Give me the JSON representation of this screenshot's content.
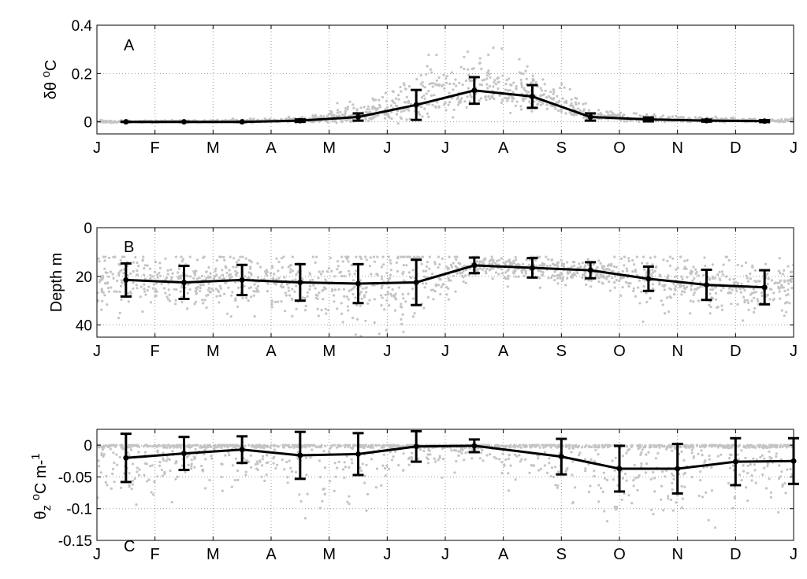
{
  "months": [
    "J",
    "F",
    "M",
    "A",
    "M",
    "J",
    "J",
    "A",
    "S",
    "O",
    "N",
    "D",
    "J"
  ],
  "scatter_color": "#c4c4c4",
  "line_color": "#000000",
  "chart_data": [
    {
      "type": "line",
      "panel_label": "A",
      "ylabel_main": "δθ",
      "ylabel_unit": "oC",
      "ylim": [
        -0.05,
        0.4
      ],
      "yticks": [
        0,
        0.2,
        0.4
      ],
      "ytick_labels": [
        "0",
        "0.2",
        "0.4"
      ],
      "xlim": [
        0,
        12
      ],
      "grid": true,
      "series": [
        {
          "x": [
            0.5,
            1.5,
            2.5,
            3.5,
            4.5,
            5.5,
            6.5,
            7.5,
            8.5,
            9.5,
            10.5,
            11.5
          ],
          "values": [
            0,
            0,
            0,
            0.005,
            0.02,
            0.07,
            0.13,
            0.105,
            0.02,
            0.01,
            0.005,
            0.003
          ],
          "errors": [
            0,
            0,
            0,
            0.005,
            0.015,
            0.062,
            0.055,
            0.047,
            0.015,
            0.008,
            0.004,
            0.004
          ]
        }
      ],
      "scatter_spread": [
        0.005,
        0.005,
        0.008,
        0.012,
        0.04,
        0.12,
        0.12,
        0.09,
        0.03,
        0.015,
        0.01,
        0.008
      ]
    },
    {
      "type": "line",
      "panel_label": "B",
      "ylabel_main": "Depth m",
      "ylabel_unit": "",
      "ylim": [
        45,
        0
      ],
      "yticks": [
        0,
        20,
        40
      ],
      "ytick_labels": [
        "0",
        "20",
        "40"
      ],
      "xlim": [
        0,
        12
      ],
      "grid": true,
      "series": [
        {
          "x": [
            0.5,
            1.5,
            2.5,
            3.5,
            4.5,
            5.5,
            6.5,
            7.5,
            8.5,
            9.5,
            10.5,
            11.5
          ],
          "values": [
            21.5,
            22.5,
            21.5,
            22.5,
            23,
            22.5,
            15.5,
            16.5,
            17.5,
            21,
            23.5,
            24.5
          ],
          "errors": [
            6.8,
            6.8,
            6.2,
            7.5,
            8,
            9.3,
            3.2,
            4,
            3.3,
            5,
            6.2,
            7
          ]
        }
      ],
      "scatter_spread": [
        8,
        8,
        8,
        10,
        14,
        14,
        3,
        4,
        4,
        7,
        8,
        8
      ]
    },
    {
      "type": "line",
      "panel_label": "C",
      "ylabel_main": "θz",
      "ylabel_unit": "oC m-1",
      "ylim": [
        -0.15,
        0.025
      ],
      "yticks": [
        0,
        -0.05,
        -0.1,
        -0.15
      ],
      "ytick_labels": [
        "0",
        "-0.05",
        "-0.1",
        "-0.15"
      ],
      "xlim": [
        0,
        12
      ],
      "grid": true,
      "series": [
        {
          "x": [
            0.5,
            1.5,
            2.5,
            3.5,
            4.5,
            5.5,
            6.5,
            8,
            9,
            10,
            11,
            12
          ],
          "values": [
            -0.02,
            -0.013,
            -0.007,
            -0.016,
            -0.014,
            -0.002,
            -0.001,
            -0.018,
            -0.037,
            -0.037,
            -0.026,
            -0.025
          ],
          "errors": [
            0.038,
            0.026,
            0.021,
            0.037,
            0.033,
            0.024,
            0.01,
            0.028,
            0.036,
            0.039,
            0.037,
            0.036
          ]
        }
      ],
      "scatter_spread": [
        0.05,
        0.05,
        0.04,
        0.06,
        0.06,
        0.04,
        0.02,
        0.05,
        0.06,
        0.06,
        0.06,
        0.05
      ]
    }
  ]
}
